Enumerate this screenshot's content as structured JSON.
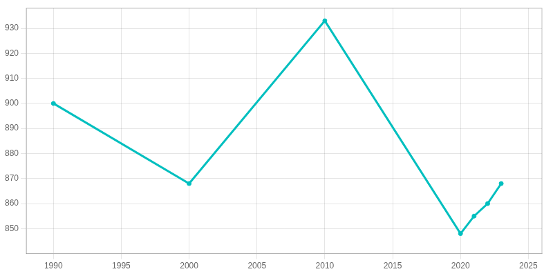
{
  "chart_data": {
    "type": "line",
    "x": [
      1990,
      2000,
      2010,
      2020,
      2021,
      2022,
      2023
    ],
    "values": [
      900,
      868,
      933,
      848,
      855,
      860,
      868
    ],
    "color": "#00BFBF",
    "xlim": [
      1988,
      2026
    ],
    "ylim": [
      840,
      938
    ],
    "xticks": [
      1990,
      1995,
      2000,
      2005,
      2010,
      2015,
      2020,
      2025
    ],
    "yticks": [
      850,
      860,
      870,
      880,
      890,
      900,
      910,
      920,
      930
    ],
    "grid": true
  }
}
